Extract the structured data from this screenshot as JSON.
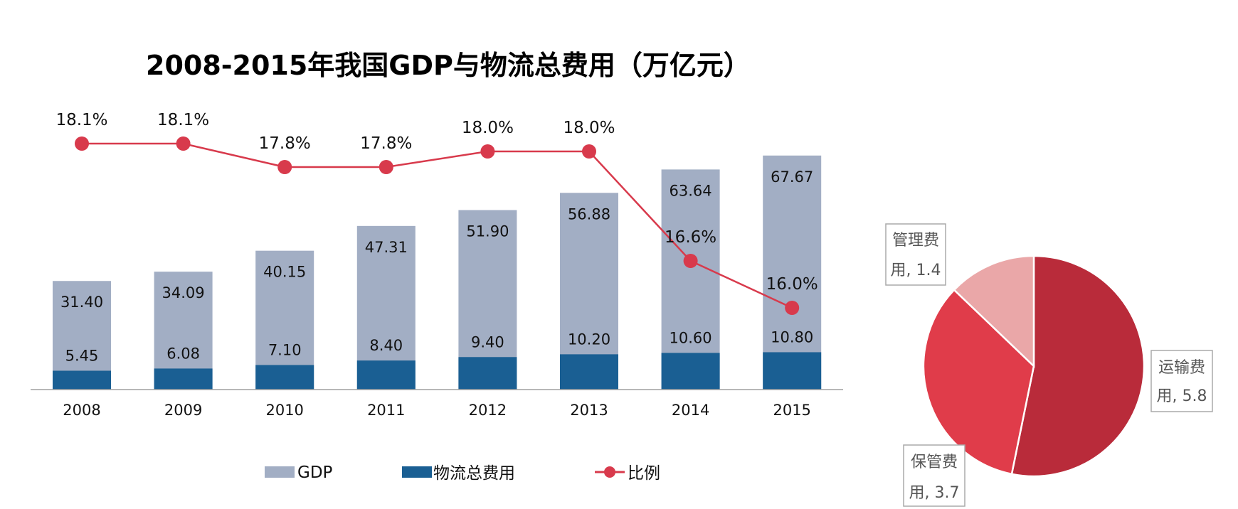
{
  "colors": {
    "gdp": "#a2aec4",
    "logistics": "#1a5f93",
    "ratio": "#d83a4c",
    "pie_transport": "#b92b3a",
    "pie_storage": "#e03c4a",
    "pie_management": "#eaa7a8"
  },
  "chart_data": [
    {
      "type": "bar",
      "title": "2008-2015年我国GDP与物流总费用（万亿元）",
      "categories": [
        "2008",
        "2009",
        "2010",
        "2011",
        "2012",
        "2013",
        "2014",
        "2015"
      ],
      "series": [
        {
          "name": "GDP",
          "values": [
            31.4,
            34.09,
            40.15,
            47.31,
            51.9,
            56.88,
            63.64,
            67.67
          ],
          "labels": [
            "31.40",
            "34.09",
            "40.15",
            "47.31",
            "51.90",
            "56.88",
            "63.64",
            "67.67"
          ]
        },
        {
          "name": "物流总费用",
          "values": [
            5.45,
            6.08,
            7.1,
            8.4,
            9.4,
            10.2,
            10.6,
            10.8
          ],
          "labels": [
            "5.45",
            "6.08",
            "7.10",
            "8.40",
            "9.40",
            "10.20",
            "10.60",
            "10.80"
          ]
        },
        {
          "name": "比例",
          "type": "line",
          "values": [
            18.1,
            18.1,
            17.8,
            17.8,
            18.0,
            18.0,
            16.6,
            16.0
          ],
          "labels": [
            "18.1%",
            "18.1%",
            "17.8%",
            "17.8%",
            "18.0%",
            "18.0%",
            "16.6%",
            "16.0%"
          ]
        }
      ],
      "ylim": [
        0,
        70
      ],
      "grid": false,
      "legend_position": "bottom"
    },
    {
      "type": "pie",
      "slices": [
        {
          "line1": "运输费",
          "line2": "用, 5.8",
          "value": 5.8
        },
        {
          "line1": "保管费",
          "line2": "用, 3.7",
          "value": 3.7
        },
        {
          "line1": "管理费",
          "line2": "用, 1.4",
          "value": 1.4
        }
      ]
    }
  ]
}
